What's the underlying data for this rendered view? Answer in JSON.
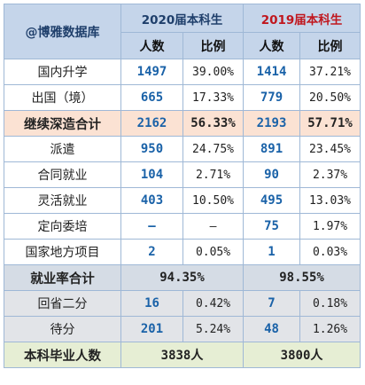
{
  "corner": "@博雅数据库",
  "years": [
    "2020届本科生",
    "2019届本科生"
  ],
  "cols": {
    "count": "人数",
    "ratio": "比例"
  },
  "rows": [
    {
      "label": "国内升学",
      "a_n": "1497",
      "a_p": "39.00%",
      "b_n": "1414",
      "b_p": "37.21%"
    },
    {
      "label": "出国（境）",
      "a_n": "665",
      "a_p": "17.33%",
      "b_n": "779",
      "b_p": "20.50%"
    }
  ],
  "subtotal": {
    "label": "继续深造合计",
    "a_n": "2162",
    "a_p": "56.33%",
    "b_n": "2193",
    "b_p": "57.71%"
  },
  "rows2": [
    {
      "label": "派遣",
      "a_n": "950",
      "a_p": "24.75%",
      "b_n": "891",
      "b_p": "23.45%"
    },
    {
      "label": "合同就业",
      "a_n": "104",
      "a_p": "2.71%",
      "b_n": "90",
      "b_p": "2.37%"
    },
    {
      "label": "灵活就业",
      "a_n": "403",
      "a_p": "10.50%",
      "b_n": "495",
      "b_p": "13.03%"
    },
    {
      "label": "定向委培",
      "a_n": "–",
      "a_p": "–",
      "b_n": "75",
      "b_p": "1.97%"
    },
    {
      "label": "国家地方项目",
      "a_n": "2",
      "a_p": "0.05%",
      "b_n": "1",
      "b_p": "0.03%"
    }
  ],
  "employment": {
    "label": "就业率合计",
    "a": "94.35%",
    "b": "98.55%"
  },
  "rows3": [
    {
      "label": "回省二分",
      "a_n": "16",
      "a_p": "0.42%",
      "b_n": "7",
      "b_p": "0.18%"
    },
    {
      "label": "待分",
      "a_n": "201",
      "a_p": "5.24%",
      "b_n": "48",
      "b_p": "1.26%"
    }
  ],
  "graduates": {
    "label": "本科毕业人数",
    "a": "3838人",
    "b": "3800人"
  }
}
